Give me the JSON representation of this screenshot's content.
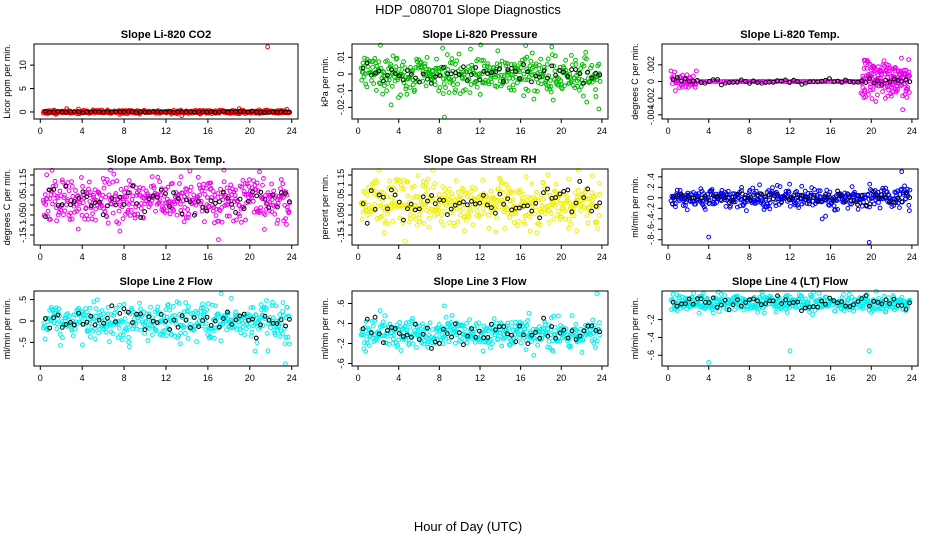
{
  "figure": {
    "title": "HDP_080701  Slope Diagnostics",
    "xlabel": "Hour of Day (UTC)"
  },
  "chart_data": [
    {
      "type": "scatter",
      "title": "Slope Li-820 CO2",
      "ylabel": "Licor ppm per min.",
      "xlim": [
        0,
        24
      ],
      "ylim": [
        -1.5,
        14.5
      ],
      "xticks": [
        0,
        4,
        8,
        12,
        16,
        20,
        24
      ],
      "yticks": [
        0,
        5,
        10
      ],
      "color": "#ff0000",
      "series": [
        {
          "name": "all",
          "gen": {
            "n": 420,
            "x0": 0.3,
            "x1": 23.8,
            "mean": 0,
            "sd": 0.2,
            "seed": 11
          },
          "extra": [
            [
              21.7,
              13.9
            ],
            [
              19.0,
              0.7
            ],
            [
              13.5,
              -0.8
            ]
          ]
        },
        {
          "name": "selected",
          "color": "#000000",
          "gen": {
            "n": 60,
            "x0": 0.5,
            "x1": 23.8,
            "mean": 0,
            "sd": 0.08,
            "seed": 12
          }
        }
      ]
    },
    {
      "type": "scatter",
      "title": "Slope Li-820 Pressure",
      "ylabel": "kPa per min.",
      "xlim": [
        0,
        24
      ],
      "ylim": [
        -0.027,
        0.018
      ],
      "xticks": [
        0,
        4,
        8,
        12,
        16,
        20,
        24
      ],
      "yticks": [
        -0.02,
        -0.01,
        0,
        0.01
      ],
      "color": "#00bb00",
      "series": [
        {
          "name": "all",
          "gen": {
            "n": 420,
            "x0": 0.3,
            "x1": 23.8,
            "mean": 0,
            "sd": 0.006,
            "seed": 21
          },
          "extra": [
            [
              8.5,
              -0.026
            ],
            [
              23.7,
              -0.021
            ],
            [
              16.5,
              0.017
            ]
          ]
        },
        {
          "name": "selected",
          "color": "#000000",
          "gen": {
            "n": 60,
            "x0": 0.5,
            "x1": 23.8,
            "mean": 0,
            "sd": 0.003,
            "seed": 22
          }
        }
      ]
    },
    {
      "type": "scatter",
      "title": "Slope Li-820 Temp.",
      "ylabel": "degrees C per min.",
      "xlim": [
        0,
        24
      ],
      "ylim": [
        -0.0045,
        0.0045
      ],
      "xticks": [
        0,
        4,
        8,
        12,
        16,
        20,
        24
      ],
      "yticks": [
        -0.004,
        -0.002,
        0,
        0.002
      ],
      "color": "#ee00ee",
      "series": [
        {
          "name": "early",
          "gen": {
            "n": 45,
            "x0": 0.3,
            "x1": 2.8,
            "mean": 0,
            "sd": 0.0006,
            "seed": 31
          }
        },
        {
          "name": "flat",
          "gen": {
            "n": 95,
            "x0": 3.0,
            "x1": 19.0,
            "mean": 0,
            "sd": 2e-05,
            "seed": 32
          }
        },
        {
          "name": "late",
          "gen": {
            "n": 170,
            "x0": 19.0,
            "x1": 23.8,
            "mean": 0.0003,
            "sd": 0.0012,
            "seed": 33
          }
        },
        {
          "name": "selected",
          "color": "#000000",
          "gen": {
            "n": 60,
            "x0": 0.5,
            "x1": 23.8,
            "mean": 0,
            "sd": 0.0002,
            "seed": 34
          }
        }
      ]
    },
    {
      "type": "scatter",
      "title": "Slope Amb. Box Temp.",
      "ylabel": "degrees C per min.",
      "xlim": [
        0,
        24
      ],
      "ylim": [
        -0.2,
        0.18
      ],
      "xticks": [
        0,
        4,
        8,
        12,
        16,
        20,
        24
      ],
      "yticks": [
        -0.15,
        -0.1,
        -0.05,
        0,
        0.05,
        0.1,
        0.15
      ],
      "color": "#ee00ee",
      "series": [
        {
          "name": "all",
          "gen": {
            "n": 460,
            "x0": 0.3,
            "x1": 23.8,
            "mean": 0.02,
            "sd": 0.06,
            "seed": 41
          }
        },
        {
          "name": "selected",
          "color": "#000000",
          "gen": {
            "n": 60,
            "x0": 0.5,
            "x1": 23.8,
            "mean": 0.02,
            "sd": 0.04,
            "seed": 42
          }
        }
      ]
    },
    {
      "type": "scatter",
      "title": "Slope Gas Stream RH",
      "ylabel": "percent per min.",
      "xlim": [
        0,
        24
      ],
      "ylim": [
        -0.2,
        0.18
      ],
      "xticks": [
        0,
        4,
        8,
        12,
        16,
        20,
        24
      ],
      "yticks": [
        -0.15,
        -0.1,
        -0.05,
        0,
        0.05,
        0.1,
        0.15
      ],
      "color": "#f0f000",
      "series": [
        {
          "name": "all",
          "gen": {
            "n": 460,
            "x0": 0.3,
            "x1": 23.8,
            "mean": 0.01,
            "sd": 0.06,
            "seed": 51
          }
        },
        {
          "name": "selected",
          "color": "#000000",
          "gen": {
            "n": 60,
            "x0": 0.5,
            "x1": 23.8,
            "mean": 0.01,
            "sd": 0.04,
            "seed": 52
          }
        }
      ]
    },
    {
      "type": "scatter",
      "title": "Slope Sample Flow",
      "ylabel": "ml/min per min.",
      "xlim": [
        0,
        24
      ],
      "ylim": [
        -0.9,
        0.55
      ],
      "xticks": [
        0,
        4,
        8,
        12,
        16,
        20,
        24
      ],
      "yticks": [
        -0.8,
        -0.6,
        -0.4,
        -0.2,
        0,
        0.2,
        0.4
      ],
      "color": "#0000ee",
      "series": [
        {
          "name": "all",
          "gen": {
            "n": 420,
            "x0": 0.3,
            "x1": 23.8,
            "mean": 0,
            "sd": 0.1,
            "seed": 61
          },
          "extra": [
            [
              4.0,
              -0.75
            ],
            [
              19.8,
              -0.85
            ],
            [
              23.0,
              0.5
            ],
            [
              15.5,
              -0.35
            ]
          ]
        },
        {
          "name": "selected",
          "color": "#000000",
          "gen": {
            "n": 60,
            "x0": 0.5,
            "x1": 23.8,
            "mean": 0,
            "sd": 0.06,
            "seed": 62
          }
        }
      ]
    },
    {
      "type": "scatter",
      "title": "Slope Line 2 Flow",
      "ylabel": "ml/min per min.",
      "xlim": [
        0,
        24
      ],
      "ylim": [
        -1.05,
        0.7
      ],
      "xticks": [
        0,
        4,
        8,
        12,
        16,
        20,
        24
      ],
      "yticks": [
        -0.5,
        0,
        0.5
      ],
      "color": "#00eeee",
      "series": [
        {
          "name": "all",
          "gen": {
            "n": 430,
            "x0": 0.3,
            "x1": 23.8,
            "mean": 0,
            "sd": 0.22,
            "seed": 71
          },
          "extra": [
            [
              23.4,
              -1.0
            ],
            [
              20.5,
              -0.7
            ]
          ]
        },
        {
          "name": "selected",
          "color": "#000000",
          "gen": {
            "n": 60,
            "x0": 0.5,
            "x1": 23.8,
            "mean": 0,
            "sd": 0.12,
            "seed": 72
          }
        }
      ]
    },
    {
      "type": "scatter",
      "title": "Slope Line 3 Flow",
      "ylabel": "ml/min per min.",
      "xlim": [
        0,
        24
      ],
      "ylim": [
        -0.65,
        0.85
      ],
      "xticks": [
        0,
        4,
        8,
        12,
        16,
        20,
        24
      ],
      "yticks": [
        -0.6,
        -0.2,
        0.2,
        0.6
      ],
      "color": "#00eeee",
      "series": [
        {
          "name": "all",
          "gen": {
            "n": 430,
            "x0": 0.3,
            "x1": 23.8,
            "mean": 0,
            "sd": 0.15,
            "seed": 81
          },
          "extra": [
            [
              23.5,
              0.8
            ],
            [
              8.5,
              0.55
            ]
          ]
        },
        {
          "name": "selected",
          "color": "#000000",
          "gen": {
            "n": 60,
            "x0": 0.5,
            "x1": 23.8,
            "mean": 0,
            "sd": 0.12,
            "seed": 82
          }
        }
      ]
    },
    {
      "type": "scatter",
      "title": "Slope Line 4 (LT) Flow",
      "ylabel": "ml/min per min.",
      "xlim": [
        0,
        24
      ],
      "ylim": [
        -0.72,
        0.12
      ],
      "xticks": [
        0,
        4,
        8,
        12,
        16,
        20,
        24
      ],
      "yticks": [
        -0.6,
        -0.4,
        -0.2
      ],
      "color": "#00eeee",
      "series": [
        {
          "name": "all",
          "gen": {
            "n": 430,
            "x0": 0.3,
            "x1": 23.8,
            "mean": -0.02,
            "sd": 0.05,
            "seed": 91
          },
          "extra": [
            [
              4.0,
              -0.68
            ],
            [
              12.0,
              -0.55
            ],
            [
              19.8,
              -0.55
            ]
          ]
        },
        {
          "name": "selected",
          "color": "#000000",
          "gen": {
            "n": 60,
            "x0": 0.5,
            "x1": 23.8,
            "mean": -0.02,
            "sd": 0.04,
            "seed": 92
          }
        }
      ]
    }
  ]
}
